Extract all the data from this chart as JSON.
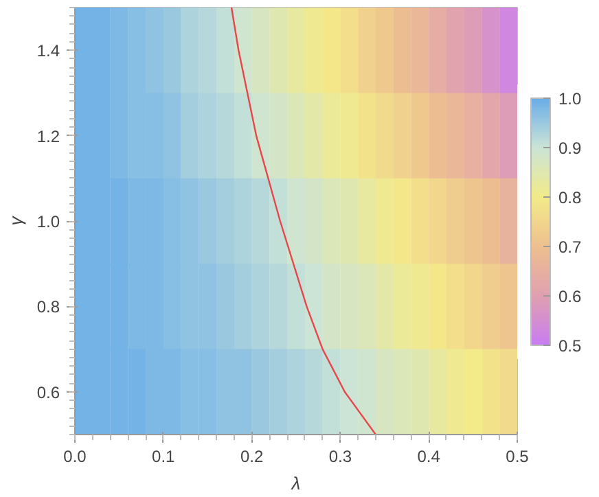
{
  "chart_data": {
    "type": "heatmap",
    "xlabel": "λ",
    "ylabel": "γ",
    "x": [
      0.01,
      0.03,
      0.05,
      0.07,
      0.09,
      0.11,
      0.13,
      0.15,
      0.17,
      0.19,
      0.21,
      0.23,
      0.25,
      0.27,
      0.29,
      0.31,
      0.33,
      0.35,
      0.37,
      0.39,
      0.41,
      0.43,
      0.45,
      0.47,
      0.49
    ],
    "y": [
      1.4,
      1.2,
      1.0,
      0.8,
      0.6
    ],
    "cells": [
      [
        0.99,
        0.99,
        0.98,
        0.97,
        0.96,
        0.95,
        0.93,
        0.92,
        0.91,
        0.89,
        0.87,
        0.85,
        0.83,
        0.81,
        0.79,
        0.77,
        0.74,
        0.72,
        0.69,
        0.67,
        0.64,
        0.61,
        0.59,
        0.56,
        0.53
      ],
      [
        0.99,
        0.99,
        0.98,
        0.97,
        0.97,
        0.96,
        0.94,
        0.93,
        0.92,
        0.91,
        0.89,
        0.88,
        0.86,
        0.84,
        0.82,
        0.81,
        0.78,
        0.76,
        0.74,
        0.72,
        0.69,
        0.67,
        0.65,
        0.62,
        0.59
      ],
      [
        0.99,
        0.99,
        0.99,
        0.98,
        0.98,
        0.97,
        0.96,
        0.95,
        0.94,
        0.93,
        0.92,
        0.91,
        0.89,
        0.88,
        0.86,
        0.85,
        0.83,
        0.81,
        0.79,
        0.77,
        0.75,
        0.73,
        0.71,
        0.69,
        0.66
      ],
      [
        0.99,
        0.99,
        0.99,
        0.98,
        0.98,
        0.97,
        0.96,
        0.96,
        0.95,
        0.94,
        0.93,
        0.92,
        0.91,
        0.9,
        0.88,
        0.87,
        0.86,
        0.84,
        0.82,
        0.81,
        0.79,
        0.77,
        0.75,
        0.73,
        0.71
      ],
      [
        0.99,
        0.99,
        0.99,
        0.99,
        0.98,
        0.98,
        0.97,
        0.97,
        0.96,
        0.96,
        0.95,
        0.94,
        0.93,
        0.92,
        0.91,
        0.9,
        0.89,
        0.87,
        0.86,
        0.85,
        0.83,
        0.81,
        0.8,
        0.78,
        0.76
      ]
    ],
    "clim": [
      0.5,
      1.0
    ],
    "cticks": [
      0.5,
      0.6,
      0.7,
      0.8,
      0.9,
      {
        "value": 1.0,
        "label": "1.0"
      }
    ],
    "xlim": [
      0.0,
      0.5
    ],
    "xticks": [
      {
        "value": 0,
        "label": "0.0"
      },
      0.1,
      0.2,
      0.3,
      0.4,
      0.5
    ],
    "ylim": [
      0.5,
      1.5
    ],
    "yticks": [
      0.6,
      0.8,
      {
        "value": 1,
        "label": "1.0"
      },
      1.2,
      1.4
    ],
    "series": [
      {
        "type": "line",
        "color": "#e8474a",
        "x": [
          0.177,
          0.185,
          0.205,
          0.232,
          0.262,
          0.28,
          0.305,
          0.34
        ],
        "values": [
          1.5,
          1.4,
          1.2,
          1.0,
          0.8,
          0.7,
          0.6,
          0.5
        ]
      }
    ]
  }
}
